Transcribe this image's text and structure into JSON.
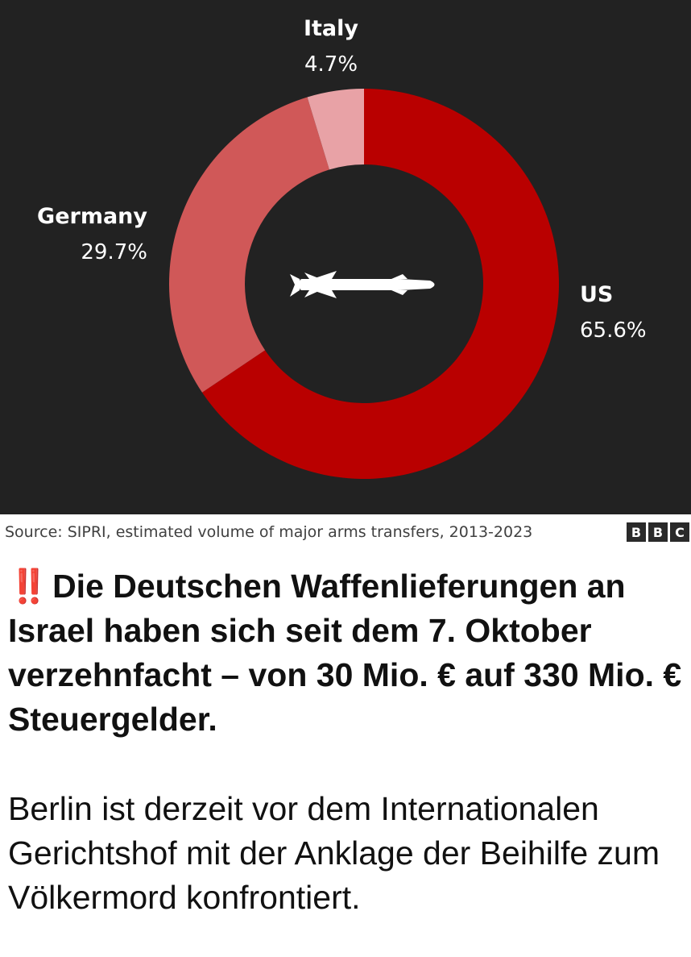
{
  "chart_data": {
    "type": "pie",
    "style": "donut",
    "categories": [
      "US",
      "Germany",
      "Italy"
    ],
    "values": [
      65.6,
      29.7,
      4.7
    ],
    "value_labels": [
      "65.6%",
      "29.7%",
      "4.7%"
    ],
    "colors": [
      "#b90000",
      "#d05858",
      "#e8a2a6"
    ],
    "center_icon": "missile-icon",
    "start_angle": "top, clockwise",
    "legend": "none (direct labels)"
  },
  "colors": {
    "panel_background": "#222222",
    "alert": "#e02020"
  },
  "source": {
    "text": "Source: SIPRI, estimated volume of major arms transfers, 2013-2023",
    "logo_letters": [
      "B",
      "B",
      "C"
    ]
  },
  "post": {
    "alert_icon": "‼️",
    "headline": "Die Deutschen Waffenlieferungen an Israel haben sich seit dem 7. Oktober verzehnfacht – von 30 Mio. € auf 330 Mio. € Steuergelder.",
    "body": "Berlin ist derzeit vor dem Internationalen Gerichtshof mit der Anklage der Beihilfe zum Völkermord konfrontiert."
  }
}
